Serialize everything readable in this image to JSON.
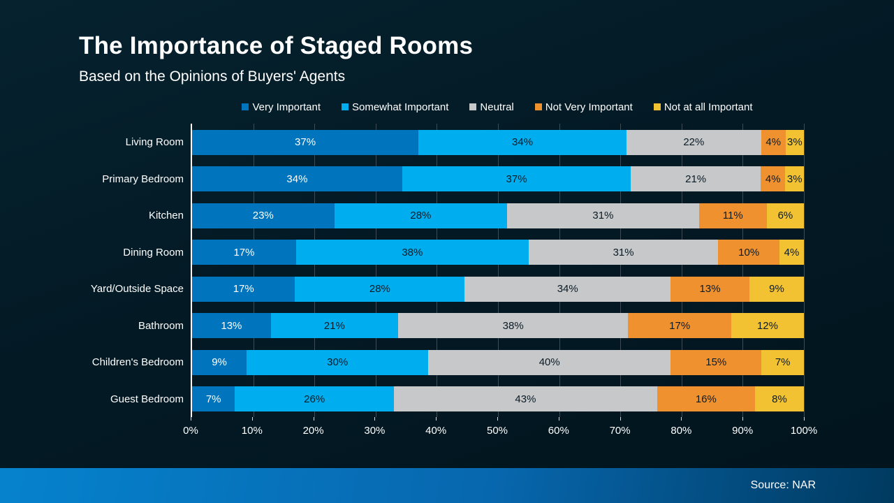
{
  "header": {
    "title": "The Importance of Staged Rooms",
    "subtitle": "Based on the Opinions of Buyers' Agents"
  },
  "footer": {
    "source": "Source: NAR"
  },
  "colors": {
    "background": "#031a25",
    "axis_line": "#ffffff",
    "gridline": "#3e4b54",
    "footer_gradient_left": "#0682cd",
    "footer_gradient_right": "#003a60"
  },
  "chart_data": {
    "type": "bar",
    "stacked": true,
    "orientation": "horizontal",
    "title": "The Importance of Staged Rooms",
    "subtitle": "Based on the Opinions of Buyers' Agents",
    "legend_position": "top",
    "grid": true,
    "xlim": [
      0,
      100
    ],
    "value_suffix": "%",
    "x_ticks": [
      "0%",
      "10%",
      "20%",
      "30%",
      "40%",
      "50%",
      "60%",
      "70%",
      "80%",
      "90%",
      "100%"
    ],
    "categories": [
      "Living Room",
      "Primary Bedroom",
      "Kitchen",
      "Dining Room",
      "Yard/Outside Space",
      "Bathroom",
      "Children's Bedroom",
      "Guest Bedroom"
    ],
    "series": [
      {
        "name": "Very Important",
        "color": "#0074bc",
        "label_color": "#ffffff",
        "values": [
          37,
          34,
          23,
          17,
          17,
          13,
          9,
          7
        ]
      },
      {
        "name": "Somewhat Important",
        "color": "#00aeef",
        "label_color": "#0b1b26",
        "values": [
          34,
          37,
          28,
          38,
          28,
          21,
          30,
          26
        ]
      },
      {
        "name": "Neutral",
        "color": "#c7c8ca",
        "label_color": "#0b1b26",
        "values": [
          22,
          21,
          31,
          31,
          34,
          38,
          40,
          43
        ]
      },
      {
        "name": "Not Very Important",
        "color": "#f0912f",
        "label_color": "#0b1b26",
        "values": [
          4,
          4,
          11,
          10,
          13,
          17,
          15,
          16
        ]
      },
      {
        "name": "Not at all Important",
        "color": "#f2c233",
        "label_color": "#0b1b26",
        "values": [
          3,
          3,
          6,
          4,
          9,
          12,
          7,
          8
        ]
      }
    ]
  }
}
